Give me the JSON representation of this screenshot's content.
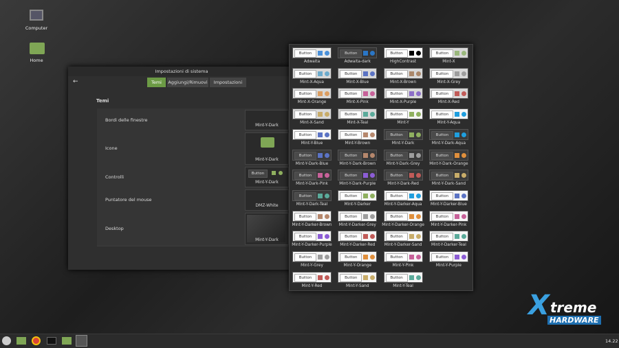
{
  "desktop": {
    "icons": [
      {
        "label": "Computer"
      },
      {
        "label": "Home"
      }
    ]
  },
  "window": {
    "title": "Impostazioni di sistema",
    "tabs": [
      "Temi",
      "Aggiungi/Rimuovi",
      "Impostazioni"
    ],
    "section": "Temi",
    "rows": [
      {
        "label": "Bordi delle finestre",
        "theme": "Mint-Y-Dark"
      },
      {
        "label": "Icone",
        "theme": "Mint-Y-Dark"
      },
      {
        "label": "Controlli",
        "theme": "Mint-Y-Dark",
        "button": "Button"
      },
      {
        "label": "Puntatore del mouse",
        "theme": "DMZ-White"
      },
      {
        "label": "Desktop",
        "theme": "Mint-Y-Dark"
      }
    ]
  },
  "theme_chooser": {
    "button_label": "Button",
    "themes": [
      {
        "name": "Adwaita",
        "bg": "#e8e8e7",
        "accent": "#4a90d9"
      },
      {
        "name": "Adwaita-dark",
        "bg": "#353535",
        "accent": "#2a76c6"
      },
      {
        "name": "HighContrast",
        "bg": "#ffffff",
        "accent": "#000000"
      },
      {
        "name": "Mint-X",
        "bg": "#d8d8d8",
        "accent": "#9ab87c"
      },
      {
        "name": "Mint-X-Aqua",
        "bg": "#d8d8d8",
        "accent": "#6cabcd"
      },
      {
        "name": "Mint-X-Blue",
        "bg": "#d8d8d8",
        "accent": "#5b73c4"
      },
      {
        "name": "Mint-X-Brown",
        "bg": "#d8d8d8",
        "accent": "#aa876a"
      },
      {
        "name": "Mint-X-Grey",
        "bg": "#d8d8d8",
        "accent": "#9d9d9d"
      },
      {
        "name": "Mint-X-Orange",
        "bg": "#d8d8d8",
        "accent": "#db9d61"
      },
      {
        "name": "Mint-X-Pink",
        "bg": "#d8d8d8",
        "accent": "#c76199"
      },
      {
        "name": "Mint-X-Purple",
        "bg": "#d8d8d8",
        "accent": "#8c6ec9"
      },
      {
        "name": "Mint-X-Red",
        "bg": "#d8d8d8",
        "accent": "#c15b58"
      },
      {
        "name": "Mint-X-Sand",
        "bg": "#d8d8d8",
        "accent": "#c8ac69"
      },
      {
        "name": "Mint-X-Teal",
        "bg": "#d8d8d8",
        "accent": "#5aaa9a"
      },
      {
        "name": "Mint-Y",
        "bg": "#f5f5f5",
        "accent": "#8fb05f"
      },
      {
        "name": "Mint-Y-Aqua",
        "bg": "#f5f5f5",
        "accent": "#1f9ede"
      },
      {
        "name": "Mint-Y-Blue",
        "bg": "#f5f5f5",
        "accent": "#5b73c4"
      },
      {
        "name": "Mint-Y-Brown",
        "bg": "#f5f5f5",
        "accent": "#b5876c"
      },
      {
        "name": "Mint-Y-Dark",
        "bg": "#3a3a3a",
        "accent": "#8fb05f"
      },
      {
        "name": "Mint-Y-Dark-Aqua",
        "bg": "#3a3a3a",
        "accent": "#1f9ede"
      },
      {
        "name": "Mint-Y-Dark-Blue",
        "bg": "#3a3a3a",
        "accent": "#5b73c4"
      },
      {
        "name": "Mint-Y-Dark-Brown",
        "bg": "#3a3a3a",
        "accent": "#b5876c"
      },
      {
        "name": "Mint-Y-Dark-Grey",
        "bg": "#3a3a3a",
        "accent": "#9d9d9d"
      },
      {
        "name": "Mint-Y-Dark-Orange",
        "bg": "#3a3a3a",
        "accent": "#e08f3c"
      },
      {
        "name": "Mint-Y-Dark-Pink",
        "bg": "#3a3a3a",
        "accent": "#c76199"
      },
      {
        "name": "Mint-Y-Dark-Purple",
        "bg": "#3a3a3a",
        "accent": "#8c5dd5"
      },
      {
        "name": "Mint-Y-Dark-Red",
        "bg": "#3a3a3a",
        "accent": "#c15b58"
      },
      {
        "name": "Mint-Y-Dark-Sand",
        "bg": "#3a3a3a",
        "accent": "#c8ac69"
      },
      {
        "name": "Mint-Y-Dark-Teal",
        "bg": "#3a3a3a",
        "accent": "#5aaa9a"
      },
      {
        "name": "Mint-Y-Darker",
        "bg": "#f5f5f5",
        "accent": "#8fb05f"
      },
      {
        "name": "Mint-Y-Darker-Aqua",
        "bg": "#f5f5f5",
        "accent": "#1f9ede"
      },
      {
        "name": "Mint-Y-Darker-Blue",
        "bg": "#f5f5f5",
        "accent": "#5b73c4"
      },
      {
        "name": "Mint-Y-Darker-Brown",
        "bg": "#f5f5f5",
        "accent": "#b5876c"
      },
      {
        "name": "Mint-Y-Darker-Grey",
        "bg": "#f5f5f5",
        "accent": "#9d9d9d"
      },
      {
        "name": "Mint-Y-Darker-Orange",
        "bg": "#f5f5f5",
        "accent": "#e08f3c"
      },
      {
        "name": "Mint-Y-Darker-Pink",
        "bg": "#f5f5f5",
        "accent": "#c76199"
      },
      {
        "name": "Mint-Y-Darker-Purple",
        "bg": "#f5f5f5",
        "accent": "#8c5dd5"
      },
      {
        "name": "Mint-Y-Darker-Red",
        "bg": "#f5f5f5",
        "accent": "#c15b58"
      },
      {
        "name": "Mint-Y-Darker-Sand",
        "bg": "#f5f5f5",
        "accent": "#c8ac69"
      },
      {
        "name": "Mint-Y-Darker-Teal",
        "bg": "#f5f5f5",
        "accent": "#5aaa9a"
      },
      {
        "name": "Mint-Y-Grey",
        "bg": "#f5f5f5",
        "accent": "#9d9d9d"
      },
      {
        "name": "Mint-Y-Orange",
        "bg": "#f5f5f5",
        "accent": "#e08f3c"
      },
      {
        "name": "Mint-Y-Pink",
        "bg": "#f5f5f5",
        "accent": "#c76199"
      },
      {
        "name": "Mint-Y-Purple",
        "bg": "#f5f5f5",
        "accent": "#8c5dd5"
      },
      {
        "name": "Mint-Y-Red",
        "bg": "#f5f5f5",
        "accent": "#c15b58"
      },
      {
        "name": "Mint-Y-Sand",
        "bg": "#f5f5f5",
        "accent": "#c8ac69"
      },
      {
        "name": "Mint-Y-Teal",
        "bg": "#f5f5f5",
        "accent": "#5aaa9a"
      }
    ]
  },
  "watermark": {
    "initial": "X",
    "brand": "treme",
    "sub": "HARDWARE"
  },
  "taskbar": {
    "clock": "14.22"
  }
}
